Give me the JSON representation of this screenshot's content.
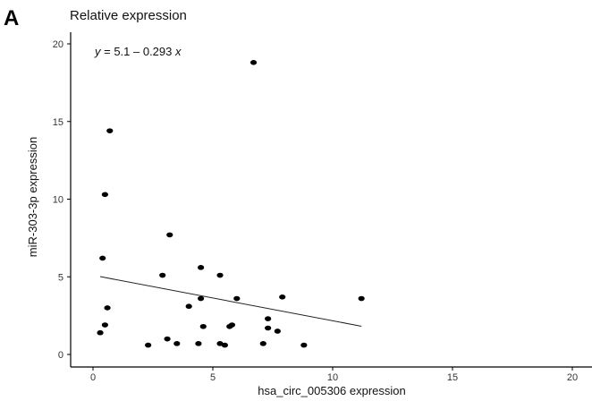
{
  "panel_label": "A",
  "chart_data": {
    "type": "scatter",
    "title": "Relative expression",
    "xlabel": "hsa_circ_005306 expression",
    "ylabel": "miR-303-3p expression",
    "xlim": [
      0,
      20
    ],
    "ylim": [
      0,
      20
    ],
    "xticks": [
      0,
      5,
      10,
      15,
      20
    ],
    "yticks": [
      0,
      5,
      10,
      15,
      20
    ],
    "grid": false,
    "regression": {
      "equation_y": "y",
      "equation_rest": " = 5.1 – 0.293 ",
      "equation_x": "x",
      "intercept": 5.1,
      "slope": -0.293,
      "x_range": [
        0.3,
        11.2
      ]
    },
    "points": [
      {
        "x": 6.7,
        "y": 18.8
      },
      {
        "x": 0.7,
        "y": 14.4
      },
      {
        "x": 0.5,
        "y": 10.3
      },
      {
        "x": 3.2,
        "y": 7.7
      },
      {
        "x": 0.4,
        "y": 6.2
      },
      {
        "x": 4.5,
        "y": 5.6
      },
      {
        "x": 2.9,
        "y": 5.1
      },
      {
        "x": 5.3,
        "y": 5.1
      },
      {
        "x": 11.2,
        "y": 3.6
      },
      {
        "x": 7.9,
        "y": 3.7
      },
      {
        "x": 4.5,
        "y": 3.6
      },
      {
        "x": 6.0,
        "y": 3.6
      },
      {
        "x": 4.0,
        "y": 3.1
      },
      {
        "x": 0.6,
        "y": 3.0
      },
      {
        "x": 7.3,
        "y": 2.3
      },
      {
        "x": 0.5,
        "y": 1.9
      },
      {
        "x": 4.6,
        "y": 1.8
      },
      {
        "x": 5.8,
        "y": 1.9
      },
      {
        "x": 5.7,
        "y": 1.8
      },
      {
        "x": 7.3,
        "y": 1.7
      },
      {
        "x": 7.7,
        "y": 1.5
      },
      {
        "x": 0.3,
        "y": 1.4
      },
      {
        "x": 3.1,
        "y": 1.0
      },
      {
        "x": 3.5,
        "y": 0.7
      },
      {
        "x": 2.3,
        "y": 0.6
      },
      {
        "x": 4.4,
        "y": 0.7
      },
      {
        "x": 5.3,
        "y": 0.7
      },
      {
        "x": 5.5,
        "y": 0.6
      },
      {
        "x": 7.1,
        "y": 0.7
      },
      {
        "x": 8.8,
        "y": 0.6
      }
    ]
  }
}
